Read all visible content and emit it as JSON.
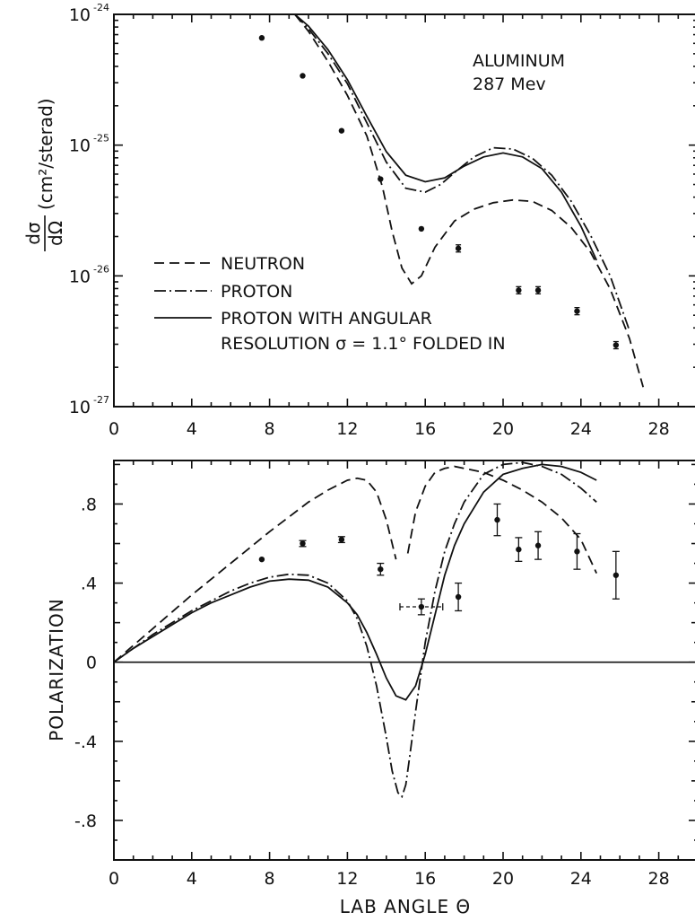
{
  "chart_data": [
    {
      "type": "line",
      "title": "",
      "annotation_lines": [
        "ALUMINUM",
        "287 Mev"
      ],
      "ylabel": "(cm²/sterad)",
      "ylabel_fraction": {
        "numerator": "dσ",
        "denominator": "dΩ"
      },
      "xlabel": "",
      "yscale": "log",
      "xlim": [
        0,
        30
      ],
      "ylim": [
        1e-27,
        1e-24
      ],
      "x_ticks": [
        0,
        4,
        8,
        12,
        16,
        20,
        24,
        28
      ],
      "x_tick_labels": [
        "0",
        "4",
        "8",
        "12",
        "16",
        "20",
        "24",
        "28"
      ],
      "y_tick_labels": [
        {
          "base": "10",
          "exp": "-24",
          "value": -24
        },
        {
          "base": "10",
          "exp": "-25",
          "value": -25
        },
        {
          "base": "10",
          "exp": "-26",
          "value": -26
        },
        {
          "base": "10",
          "exp": "-27",
          "value": -27
        }
      ],
      "legend_position": "lower-left",
      "legend": [
        {
          "style": "dashed",
          "lines": [
            "NEUTRON"
          ]
        },
        {
          "style": "dash-dot",
          "lines": [
            "PROTON"
          ]
        },
        {
          "style": "solid",
          "lines": [
            "PROTON WITH ANGULAR",
            "RESOLUTION  σ = 1.1° FOLDED IN"
          ]
        }
      ],
      "series": [
        {
          "style": "dashed",
          "x": [
            9.3,
            10,
            11,
            12,
            13,
            13.8,
            14.3,
            14.8,
            15.3,
            15.8,
            16.5,
            17.5,
            18.5,
            19.5,
            20.5,
            21.5,
            22.5,
            23.5,
            24.5,
            25.5,
            26.5,
            27.2
          ],
          "log10_y": [
            -24.0,
            -24.13,
            -24.36,
            -24.62,
            -24.93,
            -25.32,
            -25.66,
            -25.94,
            -26.06,
            -26.0,
            -25.78,
            -25.58,
            -25.49,
            -25.44,
            -25.42,
            -25.43,
            -25.5,
            -25.63,
            -25.82,
            -26.1,
            -26.48,
            -26.85
          ]
        },
        {
          "style": "dash-dot",
          "x": [
            9.3,
            10,
            11,
            12,
            13,
            14,
            15,
            16,
            16.8,
            17.5,
            18.5,
            19.5,
            20.5,
            21.5,
            22.5,
            23.5,
            24.5,
            25.5,
            26.5
          ],
          "log10_y": [
            -24.0,
            -24.11,
            -24.3,
            -24.53,
            -24.83,
            -25.13,
            -25.33,
            -25.36,
            -25.3,
            -25.21,
            -25.09,
            -25.02,
            -25.03,
            -25.1,
            -25.23,
            -25.43,
            -25.69,
            -26.0,
            -26.42
          ]
        },
        {
          "style": "solid",
          "x": [
            9.3,
            10,
            11,
            12,
            13,
            14,
            15,
            16,
            17,
            18,
            19,
            20,
            21,
            22,
            23,
            24,
            24.8
          ],
          "log10_y": [
            -24.0,
            -24.09,
            -24.27,
            -24.5,
            -24.78,
            -25.05,
            -25.23,
            -25.28,
            -25.25,
            -25.16,
            -25.09,
            -25.06,
            -25.09,
            -25.18,
            -25.36,
            -25.62,
            -25.88
          ]
        }
      ],
      "points": {
        "x": [
          7.6,
          9.7,
          11.7,
          13.7,
          15.8,
          17.7,
          20.8,
          21.8,
          23.8,
          25.8
        ],
        "log10_y": [
          -24.18,
          -24.47,
          -24.89,
          -25.26,
          -25.64,
          -25.79,
          -26.11,
          -26.11,
          -26.27,
          -26.53
        ]
      }
    },
    {
      "type": "line",
      "title": "",
      "xlabel": "LAB ANGLE  Θ",
      "ylabel": "POLARIZATION",
      "xlim": [
        0,
        30
      ],
      "ylim": [
        -1,
        1.02
      ],
      "x_ticks": [
        0,
        4,
        8,
        12,
        16,
        20,
        24,
        28
      ],
      "x_tick_labels": [
        "0",
        "4",
        "8",
        "12",
        "16",
        "20",
        "24",
        "28"
      ],
      "y_ticks": [
        0.8,
        0.4,
        0,
        -0.4,
        -0.8
      ],
      "y_tick_labels": [
        ".8",
        ".4",
        "0",
        "-.4",
        "-.8"
      ],
      "series": [
        {
          "style": "dashed",
          "x": [
            0,
            2,
            4,
            6,
            8,
            10,
            11,
            12,
            12.5,
            13,
            13.5,
            14,
            14.5
          ],
          "y": [
            0,
            0.17,
            0.34,
            0.5,
            0.66,
            0.81,
            0.87,
            0.92,
            0.93,
            0.92,
            0.86,
            0.72,
            0.52
          ]
        },
        {
          "style": "dashed",
          "x": [
            15.1,
            15.5,
            16,
            16.5,
            17,
            17.5,
            18,
            19,
            20,
            21,
            22,
            23,
            24,
            24.8
          ],
          "y": [
            0.55,
            0.76,
            0.89,
            0.96,
            0.98,
            0.99,
            0.98,
            0.96,
            0.92,
            0.87,
            0.81,
            0.73,
            0.62,
            0.45
          ]
        },
        {
          "style": "dash-dot",
          "x": [
            0,
            1,
            2,
            3,
            4,
            5,
            6,
            7,
            8,
            9,
            10,
            11,
            12,
            12.5,
            13,
            13.5,
            14,
            14.3,
            14.6,
            14.8,
            15,
            15.2,
            15.5,
            16,
            16.5,
            17,
            17.5,
            18,
            19,
            20,
            21,
            22,
            23,
            24,
            24.8
          ],
          "y": [
            0,
            0.07,
            0.14,
            0.2,
            0.26,
            0.31,
            0.36,
            0.4,
            0.43,
            0.445,
            0.44,
            0.4,
            0.31,
            0.22,
            0.08,
            -0.12,
            -0.38,
            -0.55,
            -0.66,
            -0.68,
            -0.62,
            -0.48,
            -0.25,
            0.1,
            0.36,
            0.56,
            0.7,
            0.81,
            0.95,
            1.0,
            1.01,
            0.99,
            0.95,
            0.88,
            0.81
          ]
        },
        {
          "style": "solid",
          "x": [
            0,
            1,
            2,
            3,
            4,
            5,
            6,
            7,
            8,
            9,
            10,
            11,
            12,
            12.5,
            13,
            13.5,
            14,
            14.5,
            15,
            15.5,
            16,
            16.5,
            17,
            17.5,
            18,
            19,
            20,
            21,
            22,
            23,
            24,
            24.8
          ],
          "y": [
            0,
            0.07,
            0.13,
            0.19,
            0.25,
            0.3,
            0.34,
            0.38,
            0.41,
            0.42,
            0.415,
            0.38,
            0.3,
            0.24,
            0.15,
            0.04,
            -0.08,
            -0.17,
            -0.19,
            -0.12,
            0.04,
            0.24,
            0.44,
            0.59,
            0.7,
            0.86,
            0.95,
            0.98,
            1.0,
            0.99,
            0.96,
            0.92
          ]
        }
      ],
      "points": [
        {
          "x": 7.6,
          "y": 0.52,
          "yerr": 0.0,
          "xerr": 0.0
        },
        {
          "x": 9.7,
          "y": 0.6,
          "yerr": 0.015,
          "xerr": 0.0
        },
        {
          "x": 11.7,
          "y": 0.62,
          "yerr": 0.015,
          "xerr": 0.0
        },
        {
          "x": 13.7,
          "y": 0.47,
          "yerr": 0.03,
          "xerr": 0.0
        },
        {
          "x": 15.8,
          "y": 0.28,
          "yerr": 0.04,
          "xerr": 1.1
        },
        {
          "x": 17.7,
          "y": 0.33,
          "yerr": 0.07,
          "xerr": 0.0
        },
        {
          "x": 19.7,
          "y": 0.72,
          "yerr": 0.08,
          "xerr": 0.0
        },
        {
          "x": 20.8,
          "y": 0.57,
          "yerr": 0.06,
          "xerr": 0.0
        },
        {
          "x": 21.8,
          "y": 0.59,
          "yerr": 0.07,
          "xerr": 0.0
        },
        {
          "x": 23.8,
          "y": 0.56,
          "yerr": 0.09,
          "xerr": 0.0
        },
        {
          "x": 25.8,
          "y": 0.44,
          "yerr": 0.12,
          "xerr": 0.0
        }
      ]
    }
  ]
}
